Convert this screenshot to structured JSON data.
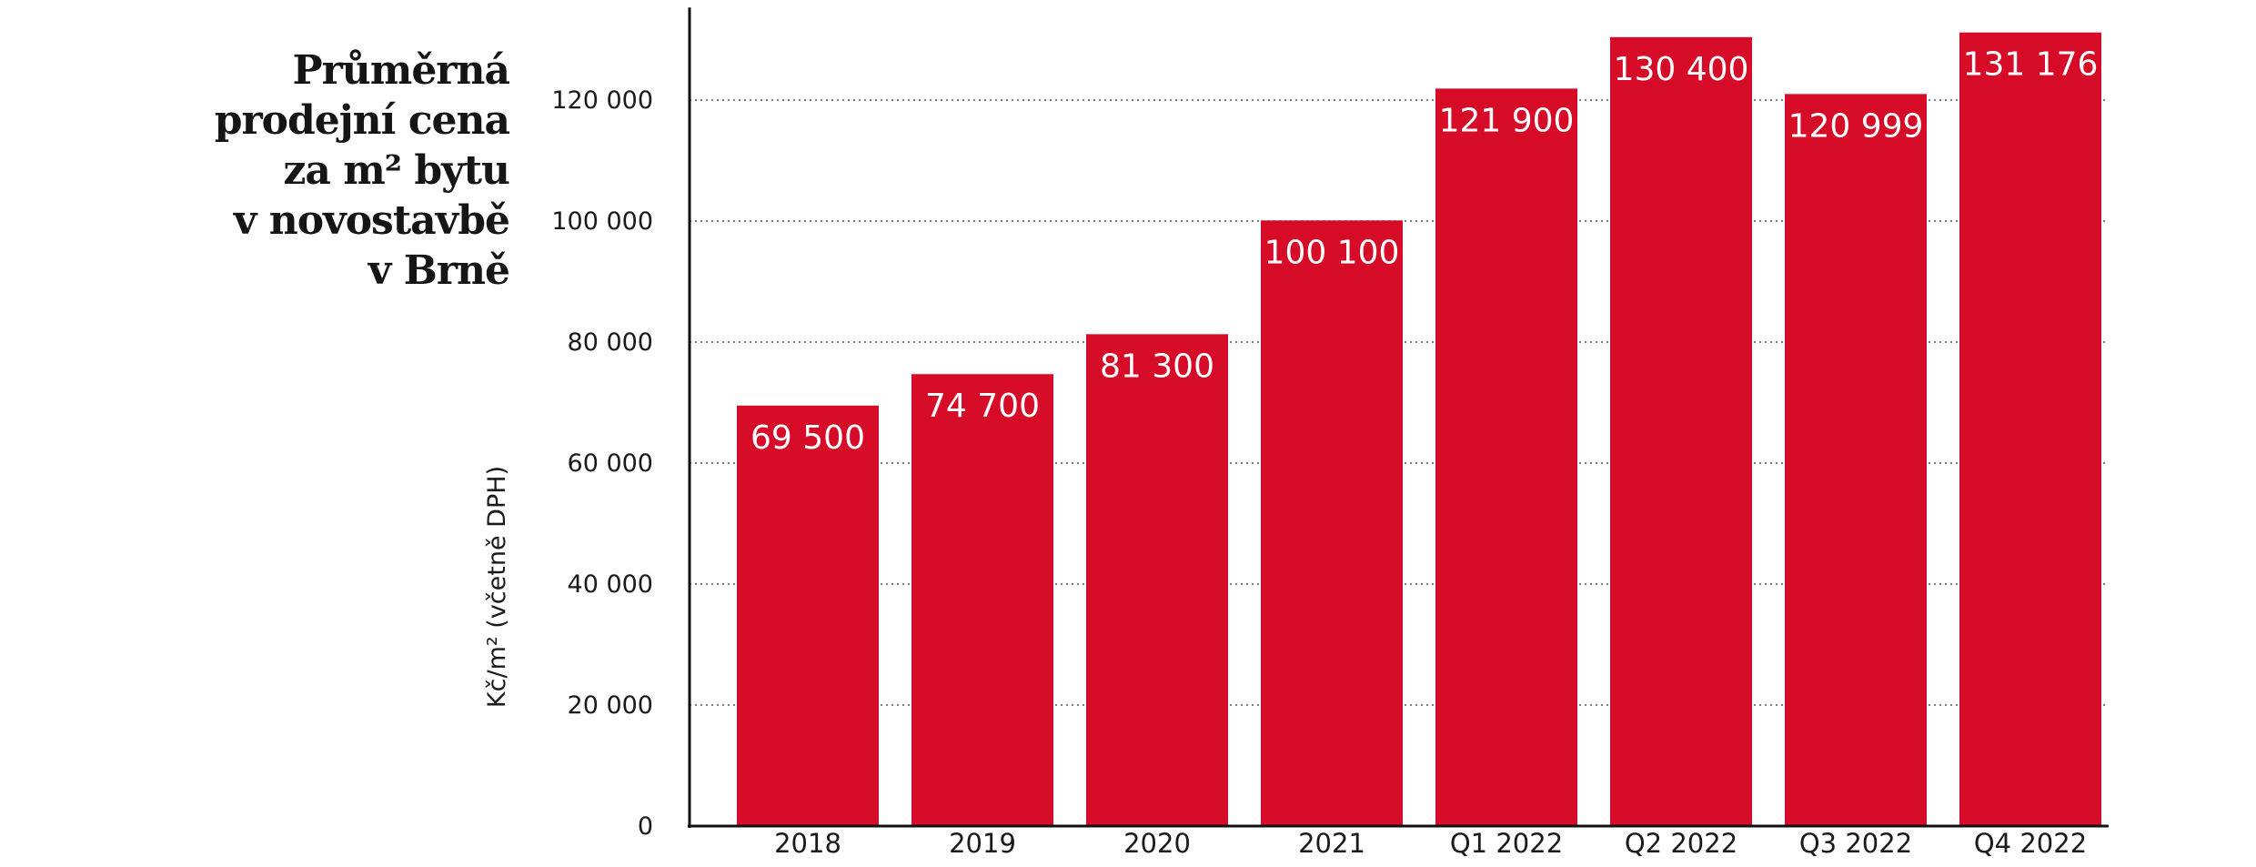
{
  "chart_data": {
    "type": "bar",
    "title_lines": [
      "Průměrná",
      "prodejní cena",
      "za m² bytu",
      "v novostavbě",
      "v Brně"
    ],
    "ylabel": "Kč/m² (včetně DPH)",
    "xlabel": "",
    "categories": [
      "2018",
      "2019",
      "2020",
      "2021",
      "Q1 2022",
      "Q2 2022",
      "Q3 2022",
      "Q4 2022"
    ],
    "values": [
      69500,
      74700,
      81300,
      100100,
      121900,
      130400,
      120999,
      131176
    ],
    "value_labels": [
      "69 500",
      "74 700",
      "81 300",
      "100 100",
      "121 900",
      "130 400",
      "120 999",
      "131 176"
    ],
    "yticks": [
      0,
      20000,
      40000,
      60000,
      80000,
      100000,
      120000
    ],
    "ytick_labels": [
      "0",
      "20 000",
      "40 000",
      "60 000",
      "80 000",
      "100 000",
      "120 000"
    ],
    "ylim": [
      0,
      135000
    ],
    "grid": "horizontal dotted",
    "legend": "none",
    "bar_color": "#d60b27"
  }
}
